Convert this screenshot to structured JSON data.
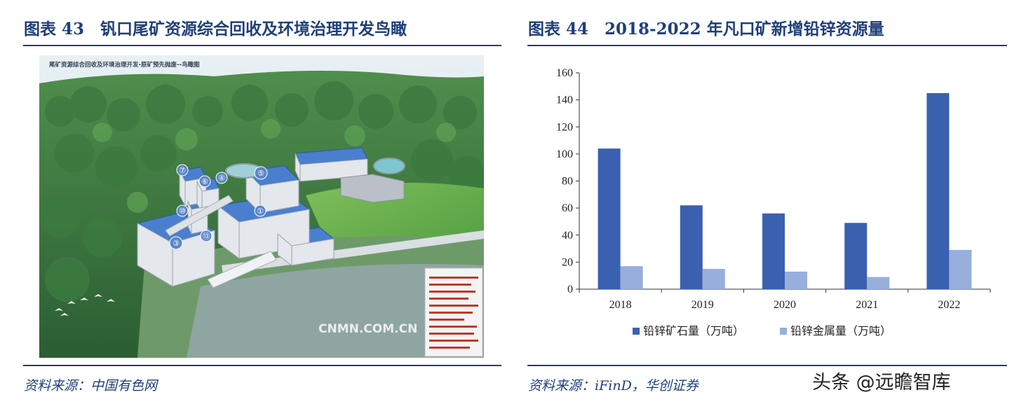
{
  "left_panel": {
    "title": "图表 43　钒口尾矿资源综合回收及环境治理开发鸟瞰",
    "image": {
      "caption": "尾矿资源综合回收及环境治理开发-原矿预先抛废--鸟瞰图",
      "watermark": "CNMN.COM.CN",
      "building_numbers": [
        "①",
        "③",
        "④",
        "⑤",
        "⑥",
        "⑦",
        "⑩",
        "⑬"
      ]
    },
    "source": "资料来源：中国有色网"
  },
  "right_panel": {
    "title": "图表 44　2018-2022 年凡口矿新增铅锌资源量",
    "source": "资料来源：iFinD，华创证券"
  },
  "watermark": "头条 @远瞻智库",
  "colors": {
    "title": "#1f3f7a",
    "rule": "#1f3f7a",
    "series_ore": "#3a60b0",
    "series_metal": "#98aedc"
  },
  "chart_data": {
    "type": "bar",
    "categories": [
      "2018",
      "2019",
      "2020",
      "2021",
      "2022"
    ],
    "series": [
      {
        "name": "铅锌矿石量（万吨）",
        "values": [
          104,
          62,
          56,
          49,
          145
        ]
      },
      {
        "name": "铅锌金属量（万吨）",
        "values": [
          17,
          15,
          13,
          9,
          29
        ]
      }
    ],
    "yticks": [
      "0",
      "20",
      "40",
      "60",
      "80",
      "100",
      "120",
      "140",
      "160"
    ],
    "ylim": [
      0,
      160
    ],
    "grid": false,
    "legend": "bottom"
  }
}
